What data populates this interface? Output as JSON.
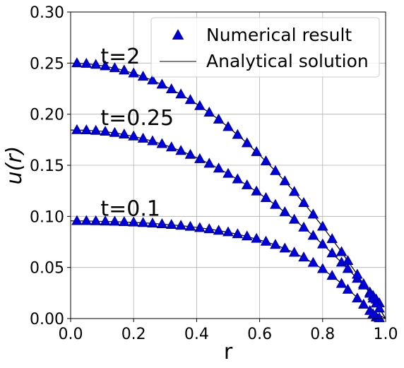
{
  "chart_data": {
    "type": "scatter",
    "title": "",
    "xlabel": "r",
    "ylabel": "u(r)",
    "xlim": [
      0.0,
      1.0
    ],
    "ylim": [
      0.0,
      0.3
    ],
    "grid": true,
    "legend_position": "top-right",
    "xticks": [
      "0.0",
      "0.2",
      "0.4",
      "0.6",
      "0.8",
      "1.0"
    ],
    "yticks": [
      "0.00",
      "0.05",
      "0.10",
      "0.15",
      "0.20",
      "0.25",
      "0.30"
    ],
    "series": [
      {
        "name": "Numerical result",
        "marker": "triangle",
        "color": "#0000dd",
        "groups": [
          {
            "label": "t=0.1",
            "x": [
              0.02,
              0.05,
              0.08,
              0.11,
              0.14,
              0.17,
              0.2,
              0.23,
              0.26,
              0.29,
              0.32,
              0.35,
              0.38,
              0.41,
              0.44,
              0.47,
              0.5,
              0.53,
              0.56,
              0.59,
              0.62,
              0.65,
              0.68,
              0.71,
              0.74,
              0.77,
              0.8,
              0.83,
              0.86,
              0.88,
              0.91,
              0.93,
              0.95,
              0.96,
              0.97,
              0.98
            ],
            "y": [
              0.0955,
              0.0955,
              0.0953,
              0.0951,
              0.0949,
              0.0945,
              0.0941,
              0.0936,
              0.0931,
              0.0924,
              0.0917,
              0.0909,
              0.0899,
              0.0887,
              0.0875,
              0.086,
              0.0845,
              0.0826,
              0.0805,
              0.0781,
              0.0753,
              0.0722,
              0.0686,
              0.0645,
              0.0598,
              0.0546,
              0.0485,
              0.0418,
              0.034,
              0.0283,
              0.0197,
              0.0137,
              0.0075,
              0.0043,
              0.0012,
              0.0004
            ]
          },
          {
            "label": "t=0.25",
            "x": [
              0.02,
              0.05,
              0.08,
              0.11,
              0.14,
              0.17,
              0.2,
              0.23,
              0.26,
              0.29,
              0.32,
              0.35,
              0.38,
              0.41,
              0.44,
              0.47,
              0.5,
              0.53,
              0.56,
              0.59,
              0.62,
              0.65,
              0.68,
              0.71,
              0.74,
              0.77,
              0.8,
              0.83,
              0.86,
              0.88,
              0.91,
              0.93,
              0.95,
              0.96,
              0.97,
              0.98
            ],
            "y": [
              0.1845,
              0.1843,
              0.1838,
              0.1829,
              0.1817,
              0.1802,
              0.1783,
              0.1761,
              0.1736,
              0.1708,
              0.1676,
              0.1641,
              0.1603,
              0.1561,
              0.1516,
              0.1468,
              0.1417,
              0.1363,
              0.1305,
              0.1244,
              0.118,
              0.1113,
              0.1042,
              0.0968,
              0.0891,
              0.0811,
              0.0726,
              0.0639,
              0.0548,
              0.0486,
              0.039,
              0.0324,
              0.0256,
              0.0222,
              0.0187,
              0.015
            ]
          },
          {
            "label": "t=2",
            "x": [
              0.02,
              0.05,
              0.08,
              0.11,
              0.14,
              0.17,
              0.2,
              0.23,
              0.26,
              0.29,
              0.32,
              0.35,
              0.38,
              0.41,
              0.44,
              0.47,
              0.5,
              0.53,
              0.56,
              0.59,
              0.62,
              0.65,
              0.68,
              0.71,
              0.74,
              0.77,
              0.8,
              0.83,
              0.86,
              0.88,
              0.91,
              0.93,
              0.95,
              0.96,
              0.97,
              0.98
            ],
            "y": [
              0.2499,
              0.2494,
              0.2484,
              0.247,
              0.2451,
              0.2428,
              0.24,
              0.2368,
              0.2331,
              0.229,
              0.2244,
              0.2194,
              0.2139,
              0.208,
              0.2016,
              0.1948,
              0.1875,
              0.1798,
              0.1716,
              0.163,
              0.1539,
              0.1444,
              0.1344,
              0.124,
              0.1131,
              0.1018,
              0.09,
              0.0778,
              0.0651,
              0.0564,
              0.043,
              0.0338,
              0.0244,
              0.0196,
              0.0148,
              0.0099
            ]
          }
        ]
      },
      {
        "name": "Analytical solution",
        "marker": "line",
        "color": "#000000",
        "curves": [
          {
            "label": "t=0.1",
            "x": [
              0.0,
              0.05,
              0.1,
              0.15,
              0.2,
              0.25,
              0.3,
              0.35,
              0.4,
              0.45,
              0.5,
              0.55,
              0.6,
              0.65,
              0.7,
              0.75,
              0.8,
              0.85,
              0.9,
              0.95,
              1.0
            ],
            "y": [
              0.0956,
              0.0955,
              0.0951,
              0.0947,
              0.0941,
              0.0933,
              0.0921,
              0.0909,
              0.0893,
              0.0871,
              0.0845,
              0.0811,
              0.0769,
              0.0722,
              0.0659,
              0.058,
              0.0485,
              0.0368,
              0.0233,
              0.0085,
              0.0
            ]
          },
          {
            "label": "t=0.25",
            "x": [
              0.0,
              0.05,
              0.1,
              0.15,
              0.2,
              0.25,
              0.3,
              0.35,
              0.4,
              0.45,
              0.5,
              0.55,
              0.6,
              0.65,
              0.7,
              0.75,
              0.8,
              0.85,
              0.9,
              0.95,
              1.0
            ],
            "y": [
              0.1845,
              0.1843,
              0.1833,
              0.1812,
              0.1783,
              0.1745,
              0.1697,
              0.1641,
              0.1575,
              0.1501,
              0.1417,
              0.1325,
              0.1222,
              0.1113,
              0.0993,
              0.0865,
              0.0726,
              0.0579,
              0.0422,
              0.0256,
              0.0
            ]
          },
          {
            "label": "t=2",
            "x": [
              0.0,
              0.05,
              0.1,
              0.15,
              0.2,
              0.25,
              0.3,
              0.35,
              0.4,
              0.45,
              0.5,
              0.55,
              0.6,
              0.65,
              0.7,
              0.75,
              0.8,
              0.85,
              0.9,
              0.95,
              1.0
            ],
            "y": [
              0.25,
              0.2494,
              0.2475,
              0.2444,
              0.24,
              0.2344,
              0.2275,
              0.2194,
              0.21,
              0.1994,
              0.1875,
              0.1744,
              0.16,
              0.1444,
              0.1275,
              0.1094,
              0.09,
              0.0694,
              0.0475,
              0.0244,
              0.0
            ]
          }
        ]
      }
    ],
    "annotations": [
      {
        "text": "t=2",
        "x": 0.095,
        "y": 0.2495
      },
      {
        "text": "t=0.25",
        "x": 0.095,
        "y": 0.1895
      },
      {
        "text": "t=0.1",
        "x": 0.095,
        "y": 0.1005
      }
    ],
    "legend": [
      {
        "label": "Numerical result",
        "marker": "triangle"
      },
      {
        "label": "Analytical solution",
        "marker": "line"
      }
    ]
  }
}
